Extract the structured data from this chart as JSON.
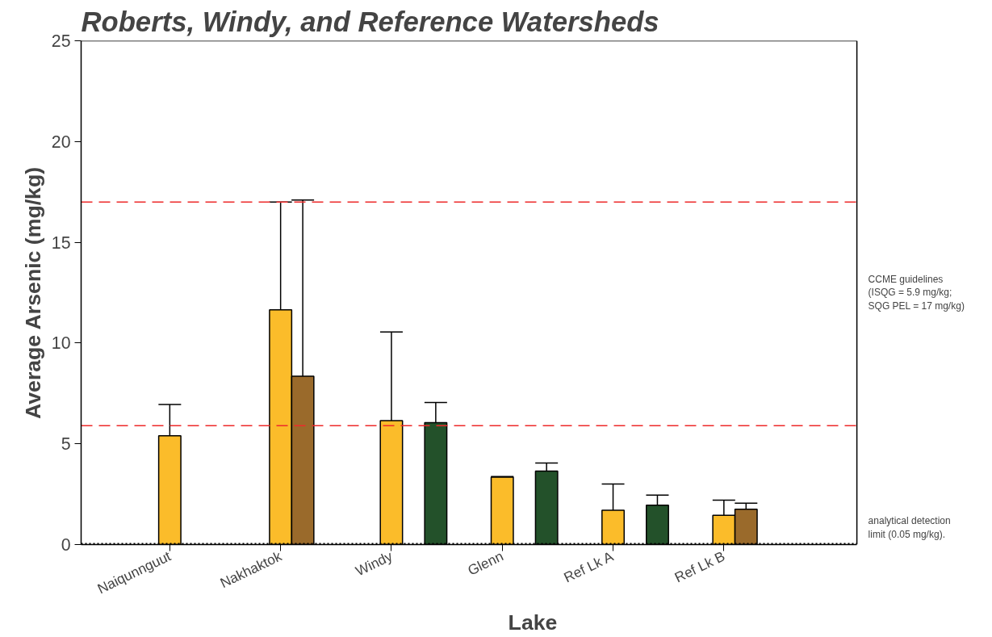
{
  "chart_data": {
    "type": "bar",
    "title": "Roberts, Windy, and Reference Watersheds",
    "xlabel": "Lake",
    "ylabel": "Average Arsenic (mg/kg)",
    "categories": [
      "Naiqunnguut",
      "Nakhaktok",
      "Windy",
      "Glenn",
      "Ref Lk A",
      "Ref Lk B"
    ],
    "series": [
      {
        "color": "#fbbc2a",
        "values": [
          5.4,
          11.65,
          6.15,
          3.35,
          1.7,
          1.45
        ],
        "errors": [
          [
            5.4,
            6.95
          ],
          [
            11.65,
            17.0
          ],
          [
            6.15,
            10.55
          ],
          [
            3.35,
            3.38
          ],
          [
            1.7,
            3.0
          ],
          [
            1.45,
            2.2
          ]
        ]
      },
      {
        "color": "#9a6a2b",
        "values": [
          null,
          8.35,
          null,
          null,
          null,
          1.75
        ],
        "errors": [
          null,
          [
            8.35,
            17.1
          ],
          null,
          null,
          null,
          [
            1.75,
            2.05
          ]
        ]
      },
      {
        "color": "#23512a",
        "values": [
          null,
          null,
          6.05,
          3.65,
          1.95,
          null
        ],
        "errors": [
          null,
          null,
          [
            6.05,
            7.05
          ],
          [
            3.65,
            4.05
          ],
          [
            1.95,
            2.45
          ],
          null
        ]
      }
    ],
    "ylim": [
      0,
      25
    ],
    "yticks": [
      0,
      5,
      10,
      15,
      20,
      25
    ],
    "grid": false,
    "ref_lines": [
      {
        "axis": "y",
        "value": 17,
        "color": "#ee2a2a",
        "line_style": "dashed"
      },
      {
        "axis": "y",
        "value": 5.9,
        "color": "#ee2a2a",
        "line_style": "dashed"
      },
      {
        "axis": "y",
        "value": 0.05,
        "color": "#000000",
        "line_style": "dotted",
        "label": "analytical detection limit (0.05 mg/kg)."
      }
    ],
    "annotations": [
      "CCME guidelines (ISQG = 5.9 mg/kg; SQG PEL = 17 mg/kg)"
    ]
  }
}
